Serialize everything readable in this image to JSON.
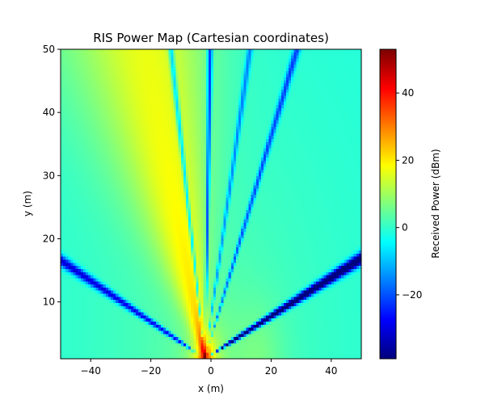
{
  "chart_data": {
    "type": "heatmap",
    "title": "RIS Power Map (Cartesian coordinates)",
    "xlabel": "x (m)",
    "ylabel": "y (m)",
    "colorbar_label": "Received Power (dBm)",
    "colormap": "jet",
    "xlim": [
      -50,
      50
    ],
    "ylim": [
      1,
      50
    ],
    "clim": [
      -39,
      53
    ],
    "x_ticks": [
      -40,
      -20,
      0,
      20,
      40
    ],
    "y_ticks": [
      10,
      20,
      30,
      40,
      50
    ],
    "colorbar_ticks": [
      -20,
      0,
      20,
      40
    ],
    "grid": false,
    "field": {
      "source": [
        -2,
        1
      ],
      "main_beam_direction_deg": 112,
      "peak_dBm": 53,
      "null_lines": [
        {
          "angle_deg": 17,
          "min_dBm": -39
        },
        {
          "angle_deg": 58,
          "min_dBm": -10
        },
        {
          "angle_deg": 73,
          "min_dBm": -5
        },
        {
          "angle_deg": 88,
          "min_dBm": -15
        },
        {
          "angle_deg": 103,
          "min_dBm": -10
        },
        {
          "angle_deg": 162,
          "min_dBm": -20
        }
      ]
    }
  }
}
